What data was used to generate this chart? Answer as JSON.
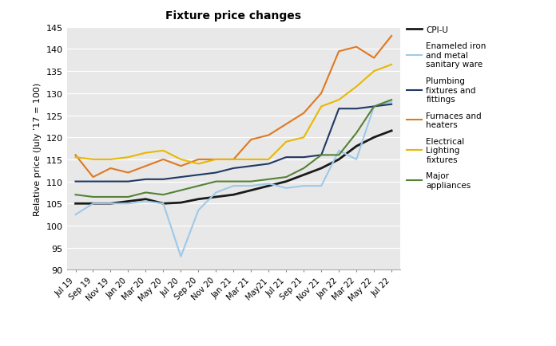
{
  "title": "Fixture price changes",
  "ylabel": "Relative price (July ’17 = 100)",
  "ylim": [
    90,
    145
  ],
  "yticks": [
    90,
    95,
    100,
    105,
    110,
    115,
    120,
    125,
    130,
    135,
    140,
    145
  ],
  "x_labels": [
    "Jul 19",
    "Sep 19",
    "Nov 19",
    "Jan 20",
    "Mar 20",
    "May 20",
    "Jul 20",
    "Sep 20",
    "Nov 20",
    "Jan 21",
    "Mar 21",
    "May21",
    "Jul 21",
    "Sep 21",
    "Nov 21",
    "Jan 22",
    "Mar 22",
    "May 22",
    "Jul 22"
  ],
  "plot_bgcolor": "#e8e8e8",
  "fig_bgcolor": "#ffffff",
  "series": {
    "CPI-U": {
      "color": "#1a1a1a",
      "linewidth": 2.0,
      "values": [
        105.0,
        105.0,
        105.0,
        105.5,
        106.0,
        105.0,
        105.2,
        106.0,
        106.5,
        107.0,
        108.0,
        109.0,
        110.0,
        111.5,
        113.0,
        115.0,
        118.0,
        120.0,
        121.5
      ]
    },
    "Enameled iron\nand metal\nsanitary ware": {
      "color": "#9ec9e8",
      "linewidth": 1.5,
      "values": [
        102.5,
        105.0,
        105.0,
        105.0,
        105.5,
        105.0,
        93.0,
        103.5,
        107.5,
        109.0,
        109.0,
        109.5,
        108.5,
        109.0,
        109.0,
        117.0,
        115.0,
        127.0,
        128.0
      ]
    },
    "Plumbing\nfixtures and\nfittings": {
      "color": "#1f3864",
      "linewidth": 1.5,
      "values": [
        110.0,
        110.0,
        110.0,
        110.0,
        110.5,
        110.5,
        111.0,
        111.5,
        112.0,
        113.0,
        113.5,
        114.0,
        115.5,
        115.5,
        116.0,
        126.5,
        126.5,
        127.0,
        127.5
      ]
    },
    "Furnaces and\nheaters": {
      "color": "#e07820",
      "linewidth": 1.5,
      "values": [
        116.0,
        111.0,
        113.0,
        112.0,
        113.5,
        115.0,
        113.5,
        115.0,
        115.0,
        115.0,
        119.5,
        120.5,
        123.0,
        125.5,
        130.0,
        139.5,
        140.5,
        138.0,
        143.0
      ]
    },
    "Electrical\nLighting\nfixtures": {
      "color": "#e8b800",
      "linewidth": 1.5,
      "values": [
        115.5,
        115.0,
        115.0,
        115.5,
        116.5,
        117.0,
        115.0,
        114.0,
        115.0,
        115.0,
        115.0,
        115.0,
        119.0,
        120.0,
        127.0,
        128.5,
        131.5,
        135.0,
        136.5
      ]
    },
    "Major\nappliances": {
      "color": "#548235",
      "linewidth": 1.5,
      "values": [
        107.0,
        106.5,
        106.5,
        106.5,
        107.5,
        107.0,
        108.0,
        109.0,
        110.0,
        110.0,
        110.0,
        110.5,
        111.0,
        113.0,
        116.0,
        116.0,
        121.0,
        127.0,
        128.5
      ]
    }
  },
  "legend_order": [
    "CPI-U",
    "Enameled iron\nand metal\nsanitary ware",
    "Plumbing\nfixtures and\nfittings",
    "Furnaces and\nheaters",
    "Electrical\nLighting\nfixtures",
    "Major\nappliances"
  ]
}
